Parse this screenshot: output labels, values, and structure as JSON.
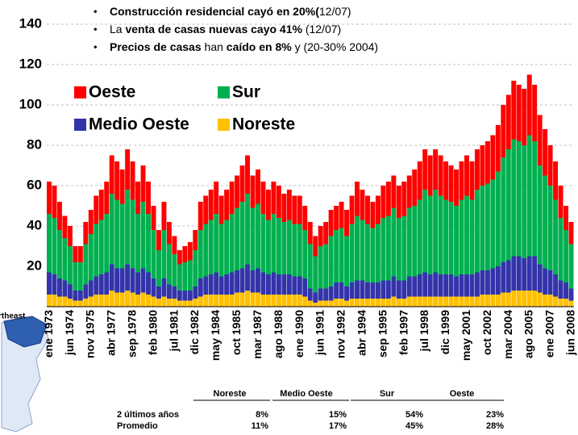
{
  "chart_data": {
    "type": "stacked_bar",
    "bullets": [
      [
        {
          "text": "Construcción residencial cayó en 20%(",
          "bold": true
        },
        {
          "text": "12/07)",
          "bold": false
        }
      ],
      [
        {
          "text": "La ",
          "bold": false
        },
        {
          "text": "venta de casas nuevas cayo 41%",
          "bold": true
        },
        {
          "text": " (12/07)",
          "bold": false
        }
      ],
      [
        {
          "text": "Precios de casas",
          "bold": true
        },
        {
          "text": " han ",
          "bold": false
        },
        {
          "text": "caído en 8%",
          "bold": true
        },
        {
          "text": " y (20-30% 2004)",
          "bold": false
        }
      ]
    ],
    "map_label": "rtheast",
    "ylim": [
      0,
      140
    ],
    "yticks": [
      20,
      40,
      60,
      80,
      100,
      120,
      140
    ],
    "grid": true,
    "categories": [
      "ene 1973",
      null,
      null,
      null,
      "jun 1974",
      null,
      null,
      null,
      "nov 1975",
      null,
      null,
      null,
      "abr 1977",
      null,
      null,
      null,
      "sep 1978",
      null,
      null,
      null,
      "feb 1980",
      null,
      null,
      null,
      "jul 1981",
      null,
      null,
      null,
      "dic 1982",
      null,
      null,
      null,
      "may 1984",
      null,
      null,
      null,
      "oct 1985",
      null,
      null,
      null,
      "mar 1987",
      null,
      null,
      null,
      "ago 1988",
      null,
      null,
      null,
      "ene 1990",
      null,
      null,
      null,
      "jun 1991",
      null,
      null,
      null,
      "nov 1992",
      null,
      null,
      null,
      "abr 1994",
      null,
      null,
      null,
      "sep 1995",
      null,
      null,
      null,
      "feb 1997",
      null,
      null,
      null,
      "jul 1998",
      null,
      null,
      null,
      "dic 1999",
      null,
      null,
      null,
      "may 2001",
      null,
      null,
      null,
      "oct 2002",
      null,
      null,
      null,
      "mar 2004",
      null,
      null,
      null,
      "ago 2005",
      null,
      null,
      null,
      "ene 2007",
      null,
      null,
      null,
      "jun 2008"
    ],
    "series": [
      {
        "name": "Noreste",
        "color": "#ffc000",
        "values": [
          6,
          6,
          5,
          5,
          4,
          3,
          3,
          4,
          5,
          6,
          6,
          6,
          8,
          7,
          7,
          8,
          7,
          6,
          7,
          6,
          5,
          4,
          5,
          4,
          4,
          3,
          3,
          3,
          4,
          5,
          6,
          6,
          6,
          6,
          6,
          6,
          7,
          7,
          8,
          7,
          7,
          6,
          6,
          6,
          6,
          6,
          6,
          6,
          6,
          5,
          3,
          2,
          3,
          3,
          3,
          4,
          4,
          3,
          4,
          4,
          4,
          4,
          4,
          4,
          4,
          4,
          5,
          4,
          4,
          5,
          5,
          5,
          5,
          5,
          5,
          5,
          5,
          5,
          5,
          5,
          5,
          5,
          5,
          6,
          6,
          6,
          6,
          7,
          7,
          8,
          8,
          8,
          8,
          8,
          7,
          6,
          6,
          5,
          4,
          4,
          3
        ]
      },
      {
        "name": "Medio Oeste",
        "color": "#3333aa",
        "values": [
          11,
          10,
          9,
          8,
          7,
          5,
          5,
          7,
          8,
          9,
          10,
          11,
          13,
          12,
          12,
          13,
          12,
          11,
          12,
          11,
          9,
          6,
          9,
          7,
          6,
          5,
          5,
          5,
          6,
          9,
          9,
          10,
          11,
          9,
          10,
          11,
          11,
          12,
          13,
          11,
          12,
          11,
          10,
          11,
          10,
          10,
          10,
          9,
          9,
          9,
          6,
          5,
          6,
          6,
          7,
          8,
          8,
          7,
          8,
          9,
          9,
          8,
          8,
          8,
          9,
          9,
          10,
          9,
          9,
          10,
          10,
          11,
          12,
          11,
          12,
          11,
          11,
          11,
          10,
          11,
          11,
          11,
          12,
          12,
          12,
          13,
          14,
          15,
          16,
          17,
          17,
          16,
          17,
          17,
          14,
          13,
          12,
          11,
          9,
          8,
          6
        ]
      },
      {
        "name": "Sur",
        "color": "#00b050",
        "values": [
          29,
          28,
          24,
          21,
          19,
          14,
          14,
          20,
          23,
          26,
          27,
          29,
          35,
          34,
          32,
          37,
          34,
          29,
          33,
          29,
          24,
          18,
          24,
          20,
          16,
          13,
          14,
          15,
          18,
          24,
          26,
          27,
          29,
          26,
          27,
          29,
          31,
          33,
          35,
          31,
          32,
          29,
          27,
          29,
          28,
          26,
          27,
          26,
          26,
          24,
          22,
          18,
          21,
          22,
          25,
          26,
          27,
          25,
          29,
          32,
          30,
          29,
          27,
          29,
          31,
          32,
          34,
          31,
          32,
          34,
          35,
          37,
          41,
          39,
          41,
          39,
          37,
          36,
          35,
          37,
          39,
          37,
          41,
          42,
          43,
          44,
          47,
          52,
          55,
          58,
          57,
          56,
          60,
          57,
          49,
          46,
          42,
          37,
          31,
          26,
          22
        ]
      },
      {
        "name": "Oeste",
        "color": "#ff0000",
        "values": [
          16,
          16,
          14,
          11,
          10,
          8,
          8,
          11,
          12,
          14,
          15,
          16,
          19,
          19,
          17,
          20,
          19,
          16,
          18,
          16,
          12,
          10,
          14,
          11,
          9,
          7,
          8,
          9,
          10,
          14,
          14,
          15,
          16,
          14,
          15,
          16,
          16,
          18,
          19,
          16,
          17,
          16,
          15,
          16,
          16,
          14,
          15,
          14,
          14,
          12,
          11,
          10,
          10,
          11,
          13,
          12,
          13,
          13,
          14,
          17,
          15,
          14,
          13,
          14,
          16,
          17,
          16,
          16,
          17,
          16,
          18,
          19,
          20,
          20,
          20,
          20,
          19,
          18,
          18,
          19,
          20,
          19,
          20,
          20,
          21,
          22,
          23,
          26,
          27,
          29,
          28,
          28,
          30,
          28,
          25,
          23,
          20,
          19,
          16,
          12,
          11
        ]
      }
    ],
    "table": {
      "columns": [
        "Noreste",
        "Medio Oeste",
        "Sur",
        "Oeste"
      ],
      "rows": [
        {
          "label": "2 últimos años",
          "values": [
            "8%",
            "15%",
            "54%",
            "23%"
          ]
        },
        {
          "label": "Promedio",
          "values": [
            "11%",
            "17%",
            "45%",
            "28%"
          ]
        }
      ]
    }
  }
}
